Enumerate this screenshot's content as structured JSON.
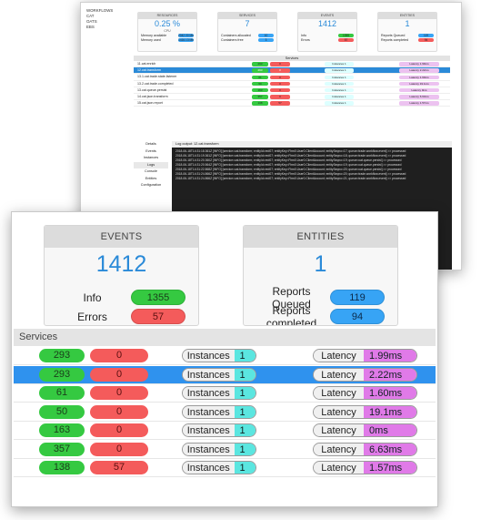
{
  "background_window": {
    "nav": [
      "WORKFLOWS",
      "CAT",
      "OATS",
      "EBS"
    ],
    "cards": {
      "resources": {
        "header": "RESOURCES",
        "value": "0.25 %",
        "sub": "CPU",
        "rows": [
          {
            "label": "Memory available",
            "value": "2042.00 Mb"
          },
          {
            "label": "Memory used",
            "value": "1416.13 Mb"
          }
        ]
      },
      "services": {
        "header": "SERVICES",
        "value": "7",
        "rows": [
          {
            "label": "Containers allocated",
            "value": "10"
          },
          {
            "label": "Containers free",
            "value": "3"
          }
        ]
      },
      "events": {
        "header": "EVENTS",
        "value": "1412",
        "rows": [
          {
            "label": "Info",
            "value": "1355"
          },
          {
            "label": "Errors",
            "value": "57"
          }
        ]
      },
      "entities": {
        "header": "ENTITIES",
        "value": "1",
        "rows": [
          {
            "label": "Reports Queued",
            "value": "119"
          },
          {
            "label": "Reports completed",
            "value": "94"
          }
        ]
      }
    },
    "services_title": "Services",
    "services": [
      {
        "name": "11.cat.enrich",
        "ok": "293",
        "err": "0",
        "instances": "1",
        "latency": "1.99ms"
      },
      {
        "name": "12.cat.transform",
        "ok": "293",
        "err": "0",
        "instances": "1",
        "latency": "2.22ms"
      },
      {
        "name": "13.1.cat.trade.state.listener",
        "ok": "61",
        "err": "0",
        "instances": "1",
        "latency": "1.60ms"
      },
      {
        "name": "13.2.cat.trade.completed",
        "ok": "50",
        "err": "0",
        "instances": "1",
        "latency": "19.1ms"
      },
      {
        "name": "13.cat.queue.persist",
        "ok": "163",
        "err": "0",
        "instances": "1",
        "latency": "0ms"
      },
      {
        "name": "14.cat.json.transform",
        "ok": "357",
        "err": "0",
        "instances": "1",
        "latency": "6.63ms"
      },
      {
        "name": "15.cat.json.report",
        "ok": "138",
        "err": "57",
        "instances": "1",
        "latency": "1.57ms"
      }
    ],
    "tabs": [
      "Details",
      "Events",
      "Instances",
      "Logs",
      "Console",
      "Entities",
      "Configuration"
    ],
    "log_title": "Log output: 12.cat.transform",
    "log_lines": [
      "2018-06-18T14:31:18.361Z [INFO] [service=cat.transform; entityId=red07; entityKey=Firm0.User0.ClientAccount; entitySeqno=17; queue=trade.workflow.event] >> processed",
      "2018-06-18T14:31:19.361Z [INFO] [service=cat.transform; entityId=red07; entityKey=Firm0.User0.ClientAccount; entitySeqno=18; queue=trade.workflow.event] >> processed",
      "2018-06-18T14:31:20.360Z [INFO] [service=cat.transform; entityId=red07; entityKey=Firm0.User0.ClientAccount; entitySeqno=19; queue=cat.queue.persist] >> processed",
      "2018-06-18T14:31:20.564Z [INFO] [service=cat.transform; entityId=red07; entityKey=Firm0.User0.ClientAccount; entitySeqno=19; queue=cat.queue.persist] >> processed",
      "2018-06-18T14:31:22.868Z [INFO] [service=cat.transform; entityId=red07; entityKey=Firm0.User0.ClientAccount; entitySeqno=20; queue=cat.queue.persist] >> processed",
      "2018-06-18T14:31:24.866Z [INFO] [service=cat.transform; entityId=red07; entityKey=Firm0.User0.ClientAccount; entitySeqno=20; queue=trade.workflow.event] >> processed",
      "2018-06-18T14:31:24.866Z [INFO] [service=cat.transform; entityId=red07; entityKey=Firm0.User0.ClientAccount; entitySeqno=21; queue=trade.workflow.event] >> processed"
    ]
  },
  "foreground": {
    "events": {
      "header": "EVENTS",
      "value": "1412",
      "rows": [
        {
          "label": "Info",
          "value": "1355"
        },
        {
          "label": "Errors",
          "value": "57"
        }
      ]
    },
    "entities": {
      "header": "ENTITIES",
      "value": "1",
      "rows": [
        {
          "label": "Reports Queued",
          "value": "119"
        },
        {
          "label": "Reports completed",
          "value": "94"
        }
      ]
    },
    "services_title": "Services",
    "instances_label": "Instances",
    "latency_label": "Latency",
    "selected_row": 1,
    "rows": [
      {
        "ok": "293",
        "err": "0",
        "instances": "1",
        "latency": "1.99ms"
      },
      {
        "ok": "293",
        "err": "0",
        "instances": "1",
        "latency": "2.22ms"
      },
      {
        "ok": "61",
        "err": "0",
        "instances": "1",
        "latency": "1.60ms"
      },
      {
        "ok": "50",
        "err": "0",
        "instances": "1",
        "latency": "19.1ms"
      },
      {
        "ok": "163",
        "err": "0",
        "instances": "1",
        "latency": "0ms"
      },
      {
        "ok": "357",
        "err": "0",
        "instances": "1",
        "latency": "6.63ms"
      },
      {
        "ok": "138",
        "err": "57",
        "instances": "1",
        "latency": "1.57ms"
      }
    ]
  },
  "colors": {
    "accent": "#2a8ad8",
    "ok": "#35c941",
    "error": "#f45b5b",
    "info": "#37a4f5",
    "instances": "#5be6e0",
    "latency": "#e07ae8"
  }
}
